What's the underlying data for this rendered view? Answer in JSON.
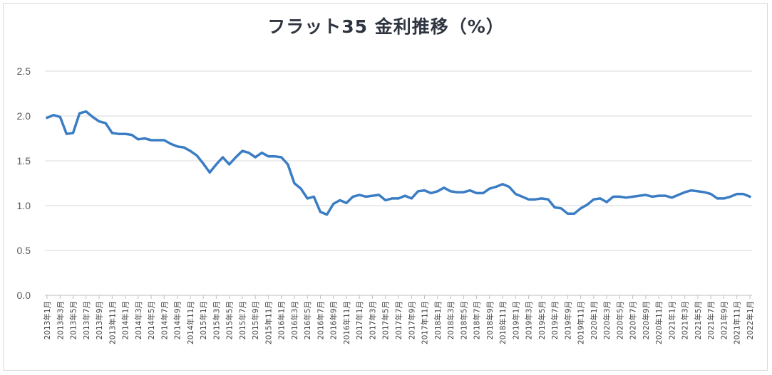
{
  "chart_data": {
    "type": "line",
    "title": "フラット35 金利推移（%）",
    "xlabel": "",
    "ylabel": "",
    "ylim": [
      0,
      2.5
    ],
    "yticks": [
      "0.0",
      "0.5",
      "1.0",
      "1.5",
      "2.0",
      "2.5"
    ],
    "grid": true,
    "legend": "none",
    "line_color": "#3b7dc4",
    "tick_labels": [
      "2013年1月",
      "2013年3月",
      "2013年5月",
      "2013年7月",
      "2013年9月",
      "2013年11月",
      "2014年1月",
      "2014年3月",
      "2014年5月",
      "2014年7月",
      "2014年9月",
      "2014年11月",
      "2015年1月",
      "2015年3月",
      "2015年5月",
      "2015年7月",
      "2015年9月",
      "2015年11月",
      "2016年1月",
      "2016年3月",
      "2016年5月",
      "2016年7月",
      "2016年9月",
      "2016年11月",
      "2017年1月",
      "2017年3月",
      "2017年5月",
      "2017年7月",
      "2017年9月",
      "2017年11月",
      "2018年1月",
      "2018年3月",
      "2018年5月",
      "2018年7月",
      "2018年9月",
      "2018年11月",
      "2019年1月",
      "2019年3月",
      "2019年5月",
      "2019年7月",
      "2019年9月",
      "2019年11月",
      "2020年1月",
      "2020年3月",
      "2020年5月",
      "2020年7月",
      "2020年9月",
      "2020年11月",
      "2021年1月",
      "2021年3月",
      "2021年5月",
      "2021年7月",
      "2021年9月",
      "2021年11月",
      "2022年1月"
    ],
    "series": [
      {
        "values": [
          1.98,
          2.01,
          1.99,
          1.8,
          1.81,
          2.03,
          2.05,
          1.99,
          1.94,
          1.92,
          1.81,
          1.8,
          1.8,
          1.79,
          1.74,
          1.75,
          1.73,
          1.73,
          1.73,
          1.69,
          1.66,
          1.65,
          1.61,
          1.56,
          1.47,
          1.37,
          1.46,
          1.54,
          1.46,
          1.54,
          1.61,
          1.59,
          1.54,
          1.59,
          1.55,
          1.55,
          1.54,
          1.46,
          1.25,
          1.19,
          1.08,
          1.1,
          0.93,
          0.9,
          1.02,
          1.06,
          1.03,
          1.1,
          1.12,
          1.1,
          1.11,
          1.12,
          1.06,
          1.08,
          1.08,
          1.11,
          1.08,
          1.16,
          1.17,
          1.14,
          1.16,
          1.2,
          1.16,
          1.15,
          1.15,
          1.17,
          1.14,
          1.14,
          1.19,
          1.21,
          1.24,
          1.21,
          1.13,
          1.1,
          1.07,
          1.07,
          1.08,
          1.07,
          0.98,
          0.97,
          0.91,
          0.91,
          0.97,
          1.01,
          1.07,
          1.08,
          1.04,
          1.1,
          1.1,
          1.09,
          1.1,
          1.11,
          1.12,
          1.1,
          1.11,
          1.11,
          1.09,
          1.12,
          1.15,
          1.17,
          1.16,
          1.15,
          1.13,
          1.08,
          1.08,
          1.1,
          1.13,
          1.13,
          1.1
        ]
      }
    ]
  }
}
